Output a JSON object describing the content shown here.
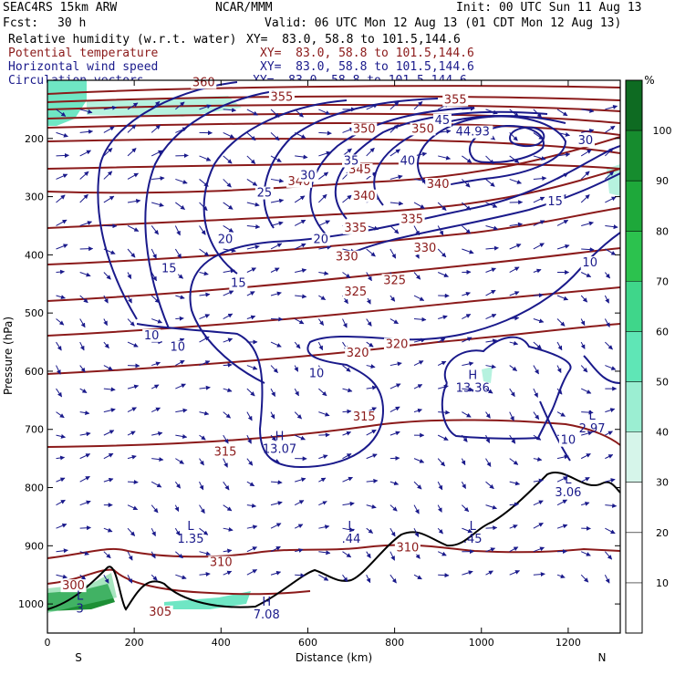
{
  "header": {
    "model": "SEAC4RS 15km ARW",
    "center": "NCAR/MMM",
    "init": "Init: 00 UTC Sun 11 Aug 13",
    "fcst_label": "Fcst:",
    "fcst_value": "30 h",
    "valid": "Valid: 06 UTC Mon 12 Aug 13 (01 CDT Mon 12 Aug 13)"
  },
  "fields": [
    {
      "name": "Relative humidity (w.r.t. water)",
      "xy": "XY=  83.0, 58.8 to 101.5,144.6",
      "color": "#000000"
    },
    {
      "name": "Potential temperature",
      "xy": "XY=  83.0, 58.8 to 101.5,144.6",
      "color": "#8b1a1a"
    },
    {
      "name": "Horizontal wind speed",
      "xy": "XY=  83.0, 58.8 to 101.5,144.6",
      "color": "#1a1a8b"
    },
    {
      "name": "Circulation vectors",
      "xy": "XY=  83.0, 58.8 to 101.5,144.6",
      "color": "#1a1a8b"
    }
  ],
  "chart_data": {
    "type": "cross-section",
    "xlabel": "Distance (km)",
    "ylabel": "Pressure (hPa)",
    "xlim": [
      0,
      1320
    ],
    "ylim": [
      1050,
      100
    ],
    "x_ticks": [
      0,
      200,
      400,
      600,
      800,
      1000,
      1200
    ],
    "y_ticks": [
      200,
      300,
      400,
      500,
      600,
      700,
      800,
      900,
      1000
    ],
    "x_end_labels": {
      "left": "S",
      "right": "N"
    },
    "colorbar": {
      "unit": "%",
      "ticks": [
        10,
        20,
        30,
        40,
        50,
        60,
        70,
        80,
        90,
        100
      ],
      "range": [
        0,
        110
      ],
      "colors": [
        "#ffffff",
        "#ffffff",
        "#ffffff",
        "#d6f5ea",
        "#9beed2",
        "#5fe6b6",
        "#3fd68a",
        "#2cc24e",
        "#1ea83a",
        "#168c2e",
        "#0e6b22"
      ]
    },
    "theta_labels": [
      {
        "value": "360",
        "x": 360,
        "p": 110
      },
      {
        "value": "355",
        "x": 540,
        "p": 135
      },
      {
        "value": "355",
        "x": 940,
        "p": 140
      },
      {
        "value": "350",
        "x": 730,
        "p": 190
      },
      {
        "value": "350",
        "x": 865,
        "p": 190
      },
      {
        "value": "345",
        "x": 720,
        "p": 260
      },
      {
        "value": "340",
        "x": 580,
        "p": 280
      },
      {
        "value": "340",
        "x": 730,
        "p": 305
      },
      {
        "value": "340",
        "x": 900,
        "p": 285
      },
      {
        "value": "335",
        "x": 710,
        "p": 360
      },
      {
        "value": "335",
        "x": 840,
        "p": 345
      },
      {
        "value": "330",
        "x": 690,
        "p": 410
      },
      {
        "value": "330",
        "x": 870,
        "p": 395
      },
      {
        "value": "325",
        "x": 710,
        "p": 470
      },
      {
        "value": "325",
        "x": 800,
        "p": 450
      },
      {
        "value": "320",
        "x": 715,
        "p": 575
      },
      {
        "value": "320",
        "x": 805,
        "p": 560
      },
      {
        "value": "315",
        "x": 730,
        "p": 685
      },
      {
        "value": "315",
        "x": 410,
        "p": 745
      },
      {
        "value": "310",
        "x": 400,
        "p": 935
      },
      {
        "value": "310",
        "x": 830,
        "p": 910
      },
      {
        "value": "305",
        "x": 260,
        "p": 1020
      },
      {
        "value": "300",
        "x": 60,
        "p": 975
      }
    ],
    "wspd_labels": [
      {
        "value": "45",
        "x": 910,
        "p": 175
      },
      {
        "value": "44.93",
        "x": 980,
        "p": 195
      },
      {
        "value": "40",
        "x": 830,
        "p": 245
      },
      {
        "value": "35",
        "x": 700,
        "p": 245
      },
      {
        "value": "30",
        "x": 600,
        "p": 270
      },
      {
        "value": "30",
        "x": 1240,
        "p": 210
      },
      {
        "value": "25",
        "x": 500,
        "p": 300
      },
      {
        "value": "20",
        "x": 410,
        "p": 380
      },
      {
        "value": "20",
        "x": 630,
        "p": 380
      },
      {
        "value": "15",
        "x": 280,
        "p": 430
      },
      {
        "value": "15",
        "x": 440,
        "p": 455
      },
      {
        "value": "15",
        "x": 1170,
        "p": 315
      },
      {
        "value": "10",
        "x": 240,
        "p": 545
      },
      {
        "value": "10",
        "x": 300,
        "p": 565
      },
      {
        "value": "10",
        "x": 620,
        "p": 610
      },
      {
        "value": "10",
        "x": 1200,
        "p": 725
      },
      {
        "value": "10",
        "x": 1250,
        "p": 420
      }
    ],
    "extrema": [
      {
        "type": "H",
        "value": "13.07",
        "x": 535,
        "p": 740
      },
      {
        "type": "H",
        "value": "13.36",
        "x": 980,
        "p": 635
      },
      {
        "type": "L",
        "value": "2.97",
        "x": 1255,
        "p": 705
      },
      {
        "type": "L",
        "value": "1.35",
        "x": 330,
        "p": 895
      },
      {
        "type": "L",
        "value": ".44",
        "x": 700,
        "p": 895
      },
      {
        "type": "L",
        "value": ".45",
        "x": 980,
        "p": 895
      },
      {
        "type": "L",
        "value": "3.06",
        "x": 1200,
        "p": 815
      },
      {
        "type": "H",
        "value": "7.08",
        "x": 505,
        "p": 1025
      }
    ],
    "lows_other": [
      {
        "type": "L",
        "value": "3",
        "x": 75,
        "p": 1015
      }
    ]
  }
}
